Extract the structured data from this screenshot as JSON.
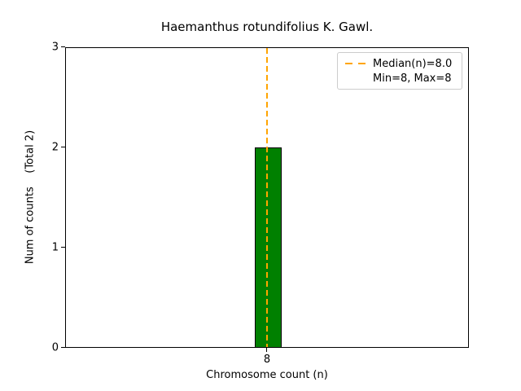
{
  "chart_data": {
    "type": "bar",
    "title": "Haemanthus rotundifolius K. Gawl.",
    "xlabel": "Chromosome count (n)",
    "ylabel": "Num of counts    (Total 2)",
    "total_counts": 2,
    "categories": [
      8
    ],
    "values": [
      2
    ],
    "bar_color": "#008000",
    "bar_edge_color": "#000000",
    "xticks": [
      "8"
    ],
    "yticks": [
      0,
      1,
      2,
      3
    ],
    "ylim": [
      0,
      3
    ],
    "grid": false,
    "median_line": {
      "x": 8,
      "style": "dashed",
      "color": "#FFA500",
      "label": "Median(n)=8.0"
    },
    "legend": {
      "position": "upper right",
      "entries": [
        {
          "label": "Median(n)=8.0",
          "handle": "orange-dashed-line"
        },
        {
          "label": "Min=8, Max=8",
          "handle": "none"
        }
      ]
    }
  }
}
